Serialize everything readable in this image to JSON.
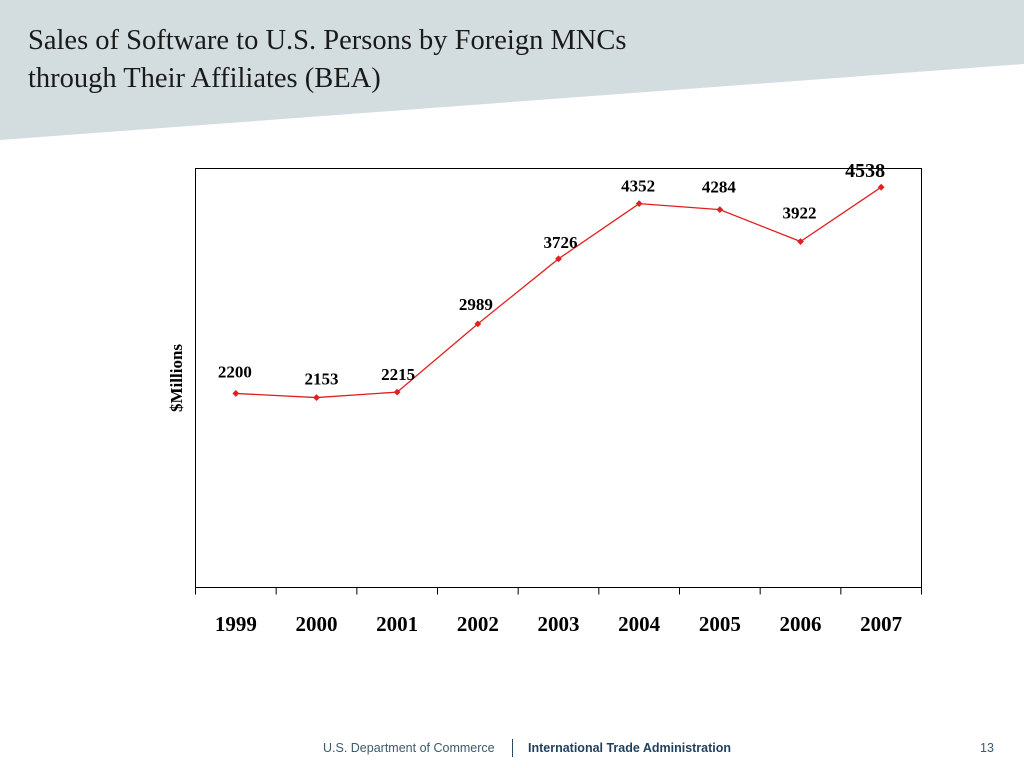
{
  "slide": {
    "title_line1": "Sales of Software to U.S. Persons by Foreign MNCs",
    "title_line2": "through Their Affiliates (BEA)"
  },
  "colors": {
    "header_band": "#d3dde0",
    "line": "#e02020",
    "axis": "#000000",
    "footer_text": "#3c5a6e",
    "footer_brand": "#1f3f5e"
  },
  "chart_data": {
    "type": "line",
    "title": "",
    "xlabel": "",
    "ylabel": "$Millions",
    "categories": [
      "1999",
      "2000",
      "2001",
      "2002",
      "2003",
      "2004",
      "2005",
      "2006",
      "2007"
    ],
    "series": [
      {
        "values": [
          2200,
          2153,
          2215,
          2989,
          3726,
          4352,
          4284,
          3922,
          4538
        ]
      }
    ],
    "data_labels": [
      "2200",
      "2153",
      "2215",
      "2989",
      "3726",
      "4352",
      "4284",
      "3922",
      "4538"
    ],
    "ylim": [
      0,
      4750
    ],
    "grid": false,
    "legend": "none",
    "marker": "diamond"
  },
  "footer": {
    "department": "U.S. Department of Commerce",
    "agency": "International Trade Administration",
    "page_number": "13"
  }
}
